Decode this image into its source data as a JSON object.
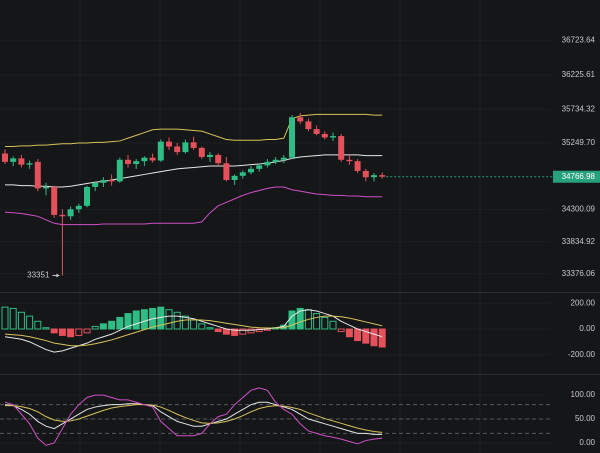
{
  "chart_data": [
    {
      "type": "candlestick",
      "up_color": "#2ebd85",
      "down_color": "#e5505a",
      "open": [
        35100,
        34980,
        35030,
        34940,
        34980,
        34600,
        34620,
        34220,
        34200,
        34300,
        34350,
        34620,
        34680,
        34720,
        34700,
        35010,
        34950,
        34990,
        35040,
        35000,
        35270,
        35200,
        35120,
        35260,
        35180,
        35050,
        35080,
        34960,
        34720,
        34780,
        34830,
        34880,
        34930,
        34980,
        35010,
        35040,
        35620,
        35560,
        35450,
        35380,
        35330,
        35350,
        35010,
        34990,
        34850,
        34760,
        34790
      ],
      "high": [
        35160,
        35060,
        35080,
        35000,
        35020,
        34680,
        34640,
        34300,
        34340,
        34380,
        34640,
        34700,
        34760,
        34800,
        35040,
        35080,
        35020,
        35060,
        35100,
        35300,
        35330,
        35250,
        35300,
        35340,
        35200,
        35120,
        35100,
        35050,
        34800,
        34860,
        34920,
        34960,
        35020,
        35050,
        35080,
        35650,
        35680,
        35600,
        35500,
        35420,
        35400,
        35380,
        35080,
        35020,
        34880,
        34820,
        34830
      ],
      "low": [
        34950,
        34920,
        34900,
        34880,
        34560,
        34500,
        34180,
        33351,
        34150,
        34250,
        34330,
        34560,
        34620,
        34640,
        34680,
        34900,
        34880,
        34920,
        34970,
        34980,
        35150,
        35080,
        35100,
        35150,
        35020,
        34980,
        34920,
        34700,
        34650,
        34740,
        34800,
        34840,
        34900,
        34950,
        34960,
        35020,
        35520,
        35420,
        35360,
        35300,
        35280,
        34980,
        34940,
        34820,
        34700,
        34700,
        34740
      ],
      "close": [
        34980,
        35030,
        34940,
        34960,
        34600,
        34620,
        34220,
        34200,
        34300,
        34350,
        34620,
        34680,
        34720,
        34700,
        35010,
        34950,
        34990,
        35040,
        35000,
        35270,
        35200,
        35120,
        35260,
        35180,
        35050,
        35080,
        34960,
        34720,
        34780,
        34830,
        34880,
        34930,
        34980,
        35010,
        35040,
        35620,
        35560,
        35450,
        35380,
        35330,
        35350,
        35010,
        34990,
        34850,
        34760,
        34790,
        34767
      ],
      "series": [
        {
          "color": "#d8c25a",
          "values": [
            35200,
            35200,
            35210,
            35210,
            35220,
            35220,
            35230,
            35240,
            35240,
            35250,
            35250,
            35260,
            35260,
            35270,
            35280,
            35320,
            35360,
            35400,
            35440,
            35450,
            35450,
            35450,
            35440,
            35430,
            35420,
            35380,
            35340,
            35300,
            35290,
            35290,
            35290,
            35290,
            35300,
            35300,
            35320,
            35600,
            35640,
            35650,
            35660,
            35660,
            35660,
            35660,
            35660,
            35660,
            35660,
            35650,
            35650
          ]
        },
        {
          "color": "#e6e6e6",
          "values": [
            34650,
            34650,
            34640,
            34640,
            34630,
            34630,
            34620,
            34620,
            34630,
            34650,
            34670,
            34690,
            34700,
            34720,
            34740,
            34760,
            34780,
            34800,
            34820,
            34840,
            34860,
            34880,
            34890,
            34900,
            34910,
            34920,
            34920,
            34920,
            34920,
            34930,
            34940,
            34950,
            34960,
            34980,
            35000,
            35030,
            35050,
            35060,
            35070,
            35080,
            35080,
            35080,
            35080,
            35080,
            35070,
            35070,
            35070
          ]
        },
        {
          "color": "#d04fc8",
          "values": [
            34260,
            34250,
            34240,
            34220,
            34200,
            34150,
            34100,
            34080,
            34080,
            34080,
            34080,
            34080,
            34090,
            34090,
            34090,
            34090,
            34090,
            34090,
            34100,
            34100,
            34100,
            34100,
            34100,
            34100,
            34120,
            34250,
            34350,
            34400,
            34450,
            34500,
            34540,
            34570,
            34600,
            34620,
            34620,
            34580,
            34560,
            34540,
            34520,
            34510,
            34500,
            34500,
            34490,
            34490,
            34480,
            34480,
            34480
          ]
        }
      ],
      "ylim": [
        33115,
        37300
      ],
      "yticks": [
        36723.64,
        36225.61,
        35734.32,
        {
          "value": 35249.7,
          "label": "35249.70"
        },
        34300.09,
        33834.92,
        33376.06
      ],
      "last_price": 34766.98,
      "last_price_color": "#26a17b",
      "low_annotation": 33351,
      "grid": true
    },
    {
      "type": "macd",
      "up_color": "#2ebd85",
      "down_color": "#e5505a",
      "values": [
        170,
        160,
        130,
        100,
        60,
        10,
        -30,
        -50,
        -60,
        -50,
        -30,
        20,
        40,
        60,
        90,
        120,
        140,
        150,
        160,
        170,
        150,
        130,
        100,
        70,
        40,
        10,
        -20,
        -40,
        -50,
        -40,
        -30,
        -20,
        -10,
        10,
        30,
        140,
        160,
        150,
        120,
        90,
        60,
        -20,
        -60,
        -90,
        -110,
        -130,
        -140
      ],
      "series": [
        {
          "color": "#e6e6e6",
          "values": [
            -60,
            -70,
            -80,
            -100,
            -130,
            -160,
            -180,
            -170,
            -150,
            -130,
            -110,
            -80,
            -60,
            -40,
            -10,
            20,
            40,
            60,
            80,
            90,
            100,
            100,
            90,
            80,
            60,
            40,
            20,
            0,
            -10,
            -10,
            -10,
            -5,
            0,
            10,
            20,
            100,
            140,
            150,
            140,
            120,
            100,
            60,
            30,
            0,
            -20,
            -40,
            -60
          ]
        },
        {
          "color": "#d8c25a",
          "values": [
            -40,
            -45,
            -50,
            -60,
            -75,
            -90,
            -110,
            -120,
            -130,
            -130,
            -125,
            -115,
            -100,
            -85,
            -65,
            -45,
            -25,
            -5,
            15,
            30,
            45,
            60,
            70,
            72,
            70,
            65,
            55,
            45,
            35,
            25,
            15,
            10,
            8,
            8,
            10,
            30,
            55,
            75,
            90,
            100,
            100,
            95,
            85,
            70,
            55,
            40,
            25
          ]
        }
      ],
      "ylim": [
        -350,
        280
      ],
      "yticks": [
        {
          "value": 200,
          "label": "200.00"
        },
        {
          "value": 0,
          "label": "0.00"
        },
        {
          "value": -200,
          "label": "-200.00"
        }
      ],
      "grid": true
    },
    {
      "type": "line",
      "series": [
        {
          "color": "#e6e6e6",
          "values": [
            80,
            78,
            70,
            60,
            45,
            35,
            30,
            40,
            50,
            60,
            70,
            75,
            78,
            80,
            80,
            82,
            82,
            80,
            78,
            65,
            55,
            45,
            40,
            35,
            35,
            40,
            45,
            50,
            60,
            70,
            80,
            85,
            85,
            80,
            75,
            70,
            60,
            50,
            45,
            40,
            35,
            30,
            25,
            20,
            20,
            18,
            18
          ]
        },
        {
          "color": "#d8c25a",
          "values": [
            78,
            78,
            76,
            72,
            65,
            55,
            48,
            45,
            46,
            50,
            56,
            62,
            68,
            73,
            76,
            78,
            80,
            80,
            79,
            75,
            68,
            60,
            53,
            47,
            42,
            41,
            42,
            45,
            50,
            57,
            65,
            72,
            76,
            78,
            77,
            74,
            70,
            63,
            57,
            51,
            46,
            41,
            36,
            31,
            27,
            24,
            22
          ]
        },
        {
          "color": "#d04fc8",
          "values": [
            85,
            80,
            60,
            40,
            10,
            -5,
            0,
            30,
            60,
            80,
            95,
            100,
            100,
            95,
            90,
            90,
            85,
            80,
            75,
            45,
            30,
            15,
            15,
            15,
            20,
            40,
            55,
            60,
            80,
            95,
            110,
            115,
            110,
            85,
            70,
            60,
            40,
            25,
            20,
            15,
            12,
            8,
            3,
            -2,
            5,
            8,
            10
          ]
        }
      ],
      "ylim": [
        -21,
        142
      ],
      "yticks": [
        {
          "value": 100,
          "label": "100.00"
        },
        {
          "value": 50,
          "label": "50.00"
        },
        {
          "value": 0,
          "label": "0.00"
        }
      ],
      "reference_lines": [
        80,
        50,
        20
      ],
      "grid": true
    }
  ]
}
